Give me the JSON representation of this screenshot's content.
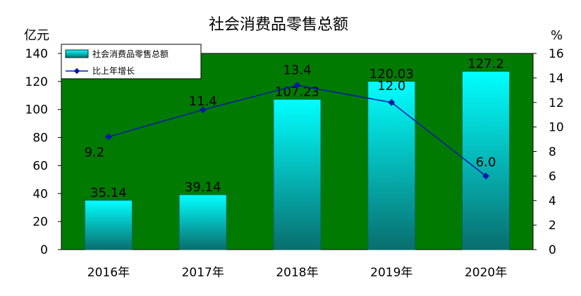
{
  "chart_data": {
    "type": "bar",
    "title": "社会消费品零售总额",
    "y_left_unit": "亿元",
    "y_right_unit": "%",
    "categories": [
      "2016年",
      "2017年",
      "2018年",
      "2019年",
      "2020年"
    ],
    "ylim_left": [
      0,
      140
    ],
    "ylim_right": [
      0,
      16
    ],
    "yticks_left": [
      "0",
      "20",
      "40",
      "60",
      "80",
      "100",
      "120",
      "140"
    ],
    "yticks_right": [
      "0",
      "2",
      "4",
      "6",
      "8",
      "10",
      "12",
      "14",
      "16"
    ],
    "legend_position": "top-left",
    "series": [
      {
        "name": "社会消费品零售总额",
        "type": "bar",
        "axis": "left",
        "values": [
          35.14,
          39.14,
          107.23,
          120.03,
          127.2
        ],
        "labels": [
          "35.14",
          "39.14",
          "107.23",
          "120.03",
          "127.2"
        ]
      },
      {
        "name": "比上年增长",
        "type": "line",
        "axis": "right",
        "values": [
          9.2,
          11.4,
          13.4,
          12.0,
          6.0
        ],
        "labels": [
          "9.2",
          "11.4",
          "13.4",
          "12.0",
          "6.0"
        ]
      }
    ],
    "colors": {
      "plot_bg": "#007a00",
      "bar_top": "#00ffff",
      "bar_bottom": "#0a6e6e",
      "line": "#0018a8"
    }
  }
}
